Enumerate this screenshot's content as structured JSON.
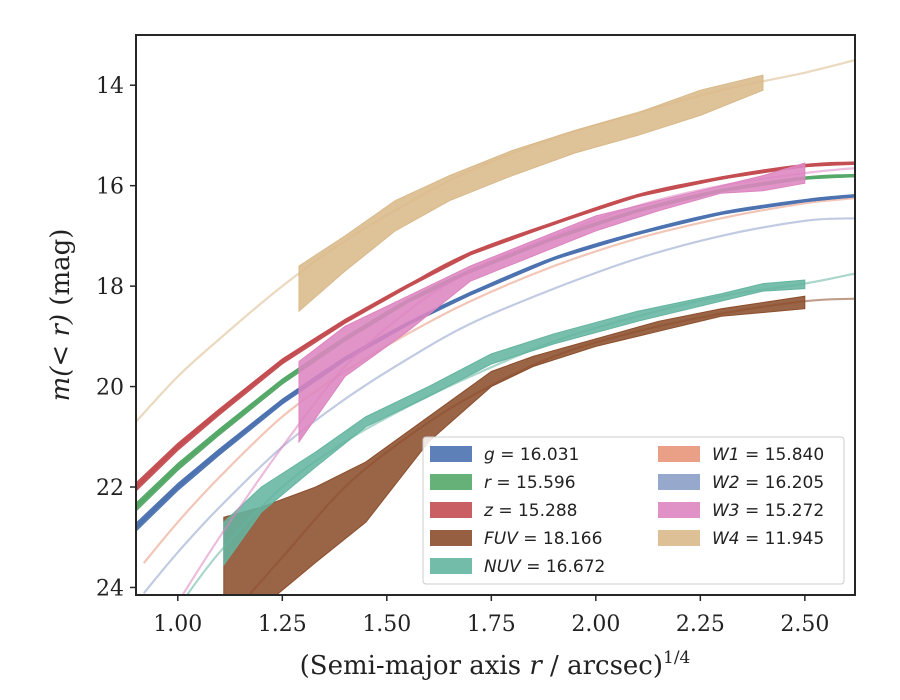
{
  "chart_data": {
    "type": "line",
    "title": "",
    "xlabel": "(Semi-major axis r / arcsec)",
    "xlabel_var": "r",
    "xlabel_pre": "(Semi-major axis ",
    "xlabel_post": " / arcsec)",
    "xlabel_sup": "1/4",
    "ylabel": "m(<r) (mag)",
    "ylabel_math": "m(< r)",
    "ylabel_unit": " (mag)",
    "xlim": [
      0.9,
      2.62
    ],
    "ylim": [
      24.15,
      13.0
    ],
    "y_inverted": true,
    "grid": false,
    "legend_position": "lower-right",
    "xticks": [
      1.0,
      1.25,
      1.5,
      1.75,
      2.0,
      2.25,
      2.5
    ],
    "xtick_labels": [
      "1.00",
      "1.25",
      "1.50",
      "1.75",
      "2.00",
      "2.25",
      "2.50"
    ],
    "yticks": [
      14,
      16,
      18,
      20,
      22,
      24
    ],
    "ytick_labels": [
      "14",
      "16",
      "18",
      "20",
      "22",
      "24"
    ],
    "series": [
      {
        "name": "g = 16.031",
        "band": "g",
        "mag": "16.031",
        "color": "#4c72b0",
        "model": [
          [
            0.9,
            22.8
          ],
          [
            1.0,
            22.0
          ],
          [
            1.1,
            21.3
          ],
          [
            1.25,
            20.3
          ],
          [
            1.4,
            19.45
          ],
          [
            1.55,
            18.75
          ],
          [
            1.7,
            18.15
          ],
          [
            1.9,
            17.45
          ],
          [
            2.1,
            16.95
          ],
          [
            2.3,
            16.55
          ],
          [
            2.5,
            16.3
          ],
          [
            2.62,
            16.2
          ]
        ],
        "band_x": [
          0.9,
          1.0,
          1.1,
          1.25,
          1.4,
          1.55,
          1.7,
          1.9,
          2.1,
          2.3,
          2.5,
          2.62
        ],
        "band_upper": [
          22.72,
          21.93,
          21.24,
          20.25,
          19.41,
          18.72,
          18.12,
          17.43,
          16.93,
          16.53,
          16.28,
          16.18
        ],
        "band_lower": [
          22.88,
          22.07,
          21.36,
          20.35,
          19.49,
          18.78,
          18.18,
          17.47,
          16.97,
          16.57,
          16.32,
          16.22
        ]
      },
      {
        "name": "r = 15.596",
        "band": "r",
        "mag": "15.596",
        "color": "#55a868",
        "model": [
          [
            0.9,
            22.4
          ],
          [
            1.0,
            21.6
          ],
          [
            1.1,
            20.9
          ],
          [
            1.25,
            19.9
          ],
          [
            1.4,
            19.05
          ],
          [
            1.55,
            18.3
          ],
          [
            1.7,
            17.7
          ],
          [
            1.9,
            17.05
          ],
          [
            2.1,
            16.5
          ],
          [
            2.3,
            16.1
          ],
          [
            2.5,
            15.85
          ],
          [
            2.62,
            15.8
          ]
        ],
        "band_x": [
          0.9,
          1.0,
          1.1,
          1.25,
          1.4,
          1.55,
          1.7,
          1.9,
          2.1,
          2.3,
          2.5,
          2.62
        ],
        "band_upper": [
          22.32,
          21.53,
          20.84,
          19.85,
          19.01,
          18.27,
          17.67,
          17.03,
          16.48,
          16.08,
          15.83,
          15.78
        ],
        "band_lower": [
          22.48,
          21.67,
          20.96,
          19.95,
          19.09,
          18.33,
          17.73,
          17.07,
          16.52,
          16.12,
          15.87,
          15.82
        ]
      },
      {
        "name": "z = 15.288",
        "band": "z",
        "mag": "15.288",
        "color": "#c44e52",
        "model": [
          [
            0.9,
            22.0
          ],
          [
            1.0,
            21.2
          ],
          [
            1.1,
            20.5
          ],
          [
            1.25,
            19.5
          ],
          [
            1.4,
            18.7
          ],
          [
            1.55,
            18.0
          ],
          [
            1.7,
            17.35
          ],
          [
            1.9,
            16.75
          ],
          [
            2.1,
            16.2
          ],
          [
            2.3,
            15.85
          ],
          [
            2.5,
            15.6
          ],
          [
            2.62,
            15.55
          ]
        ],
        "band_x": [
          0.9,
          1.0,
          1.1,
          1.25,
          1.4,
          1.55,
          1.7,
          1.9,
          2.1,
          2.3,
          2.5,
          2.62
        ],
        "band_upper": [
          21.92,
          21.13,
          20.44,
          19.45,
          18.66,
          17.97,
          17.32,
          16.73,
          16.18,
          15.83,
          15.58,
          15.53
        ],
        "band_lower": [
          22.08,
          21.27,
          20.56,
          19.55,
          18.74,
          18.03,
          17.38,
          16.77,
          16.22,
          15.87,
          15.62,
          15.57
        ]
      },
      {
        "name": "FUV = 18.166",
        "band": "FUV",
        "mag": "18.166",
        "color": "#8c4e2c",
        "model": [
          [
            0.9,
            26.5
          ],
          [
            1.0,
            25.6
          ],
          [
            1.1,
            24.8
          ],
          [
            1.25,
            23.4
          ],
          [
            1.4,
            22.0
          ],
          [
            1.55,
            21.0
          ],
          [
            1.7,
            20.2
          ],
          [
            1.9,
            19.4
          ],
          [
            2.1,
            18.9
          ],
          [
            2.3,
            18.55
          ],
          [
            2.5,
            18.3
          ],
          [
            2.62,
            18.25
          ]
        ],
        "band_x": [
          1.11,
          1.2,
          1.33,
          1.45,
          1.6,
          1.75,
          1.85,
          2.0,
          2.15,
          2.3,
          2.5
        ],
        "band_upper": [
          22.6,
          22.4,
          22.0,
          21.5,
          20.6,
          19.7,
          19.4,
          19.05,
          18.7,
          18.45,
          18.2
        ],
        "band_lower": [
          25.0,
          24.4,
          23.5,
          22.7,
          21.1,
          20.0,
          19.6,
          19.2,
          18.9,
          18.6,
          18.45
        ]
      },
      {
        "name": "NUV = 16.672",
        "band": "NUV",
        "mag": "16.672",
        "color": "#64b5a0",
        "model": [
          [
            0.9,
            25.5
          ],
          [
            1.0,
            24.4
          ],
          [
            1.1,
            23.3
          ],
          [
            1.25,
            22.0
          ],
          [
            1.4,
            21.1
          ],
          [
            1.55,
            20.4
          ],
          [
            1.7,
            19.8
          ],
          [
            1.9,
            19.1
          ],
          [
            2.1,
            18.6
          ],
          [
            2.3,
            18.2
          ],
          [
            2.5,
            17.95
          ],
          [
            2.62,
            17.75
          ]
        ],
        "band_x": [
          1.11,
          1.2,
          1.33,
          1.45,
          1.6,
          1.75,
          1.9,
          2.1,
          2.3,
          2.4,
          2.5
        ],
        "band_upper": [
          22.7,
          22.0,
          21.3,
          20.6,
          20.0,
          19.35,
          18.95,
          18.5,
          18.15,
          17.95,
          17.88
        ],
        "band_lower": [
          23.55,
          22.5,
          21.6,
          20.8,
          20.2,
          19.55,
          19.15,
          18.7,
          18.3,
          18.1,
          18.05
        ]
      },
      {
        "name": "W1 = 15.840",
        "band": "W1",
        "mag": "15.840",
        "color": "#e8967a",
        "model": [
          [
            0.92,
            23.5
          ],
          [
            1.0,
            22.7
          ],
          [
            1.1,
            21.8
          ],
          [
            1.25,
            20.6
          ],
          [
            1.4,
            19.7
          ],
          [
            1.55,
            18.95
          ],
          [
            1.7,
            18.3
          ],
          [
            1.9,
            17.6
          ],
          [
            2.1,
            17.05
          ],
          [
            2.3,
            16.65
          ],
          [
            2.5,
            16.35
          ],
          [
            2.62,
            16.25
          ]
        ]
      },
      {
        "name": "W2 = 16.205",
        "band": "W2",
        "mag": "16.205",
        "color": "#8c9ec8",
        "model": [
          [
            0.92,
            24.1
          ],
          [
            1.0,
            23.3
          ],
          [
            1.1,
            22.4
          ],
          [
            1.25,
            21.2
          ],
          [
            1.4,
            20.25
          ],
          [
            1.55,
            19.45
          ],
          [
            1.7,
            18.75
          ],
          [
            1.9,
            18.05
          ],
          [
            2.1,
            17.45
          ],
          [
            2.3,
            17.0
          ],
          [
            2.5,
            16.7
          ],
          [
            2.62,
            16.65
          ]
        ]
      },
      {
        "name": "W3 = 15.272",
        "band": "W3",
        "mag": "15.272",
        "color": "#dd85c0",
        "model": [
          [
            1.0,
            24.3
          ],
          [
            1.1,
            23.0
          ],
          [
            1.25,
            21.2
          ],
          [
            1.4,
            19.6
          ],
          [
            1.55,
            18.5
          ],
          [
            1.7,
            17.7
          ],
          [
            1.9,
            17.0
          ],
          [
            2.1,
            16.4
          ],
          [
            2.3,
            16.0
          ],
          [
            2.5,
            15.75
          ],
          [
            2.62,
            15.65
          ]
        ],
        "band_x": [
          1.29,
          1.4,
          1.55,
          1.7,
          1.85,
          2.0,
          2.15,
          2.3,
          2.4,
          2.5
        ],
        "band_upper": [
          19.5,
          18.8,
          18.2,
          17.6,
          17.1,
          16.6,
          16.3,
          16.0,
          15.8,
          15.55
        ],
        "band_lower": [
          21.1,
          19.8,
          18.9,
          17.9,
          17.4,
          16.9,
          16.5,
          16.15,
          16.1,
          15.95
        ]
      },
      {
        "name": "W4 = 11.945",
        "band": "W4",
        "mag": "11.945",
        "color": "#d9b98a",
        "model": [
          [
            0.9,
            20.7
          ],
          [
            1.0,
            19.8
          ],
          [
            1.1,
            19.05
          ],
          [
            1.25,
            18.0
          ],
          [
            1.4,
            17.1
          ],
          [
            1.55,
            16.35
          ],
          [
            1.7,
            15.7
          ],
          [
            1.9,
            15.05
          ],
          [
            2.1,
            14.55
          ],
          [
            2.3,
            14.1
          ],
          [
            2.5,
            13.75
          ],
          [
            2.62,
            13.5
          ]
        ],
        "band_x": [
          1.29,
          1.4,
          1.52,
          1.65,
          1.8,
          1.95,
          2.1,
          2.25,
          2.4
        ],
        "band_upper": [
          17.6,
          17.0,
          16.3,
          15.8,
          15.3,
          14.9,
          14.55,
          14.1,
          13.8
        ],
        "band_lower": [
          18.5,
          17.7,
          16.9,
          16.3,
          15.8,
          15.35,
          15.0,
          14.6,
          14.1
        ]
      }
    ],
    "legend_columns": [
      [
        "g",
        "r",
        "z",
        "FUV",
        "NUV"
      ],
      [
        "W1",
        "W2",
        "W3",
        "W4"
      ]
    ]
  }
}
